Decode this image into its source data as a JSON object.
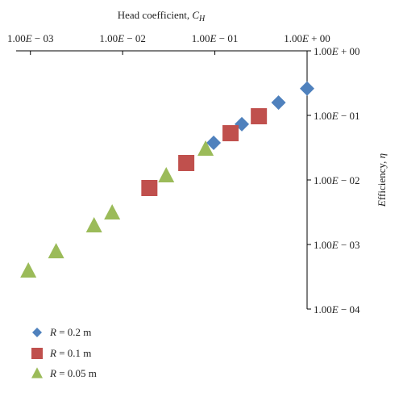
{
  "chart_data": {
    "type": "scatter",
    "x_label": "Head coefficient, C_H",
    "y_label": "Efficiency, η",
    "xscale": "log",
    "yscale": "log",
    "xlim": [
      0.0007,
      1
    ],
    "ylim": [
      0.0001,
      1
    ],
    "xticks": [
      {
        "value": 0.001,
        "label": "1.00E − 03"
      },
      {
        "value": 0.01,
        "label": "1.00E − 02"
      },
      {
        "value": 0.1,
        "label": "1.00E − 01"
      },
      {
        "value": 1,
        "label": "1.00E + 00"
      }
    ],
    "yticks": [
      {
        "value": 1,
        "label": "1.00E + 00"
      },
      {
        "value": 0.1,
        "label": "1.00E − 01"
      },
      {
        "value": 0.01,
        "label": "1.00E − 02"
      },
      {
        "value": 0.001,
        "label": "1.00E − 03"
      },
      {
        "value": 0.0001,
        "label": "1.00E − 04"
      }
    ],
    "legend": "bottom-left",
    "series": [
      {
        "name": "R = 0.2 m",
        "color": "#4f81bd",
        "marker": "diamond",
        "x": [
          0.097,
          0.196,
          0.49,
          1.0
        ],
        "values": [
          0.0376,
          0.073,
          0.158,
          0.26
        ]
      },
      {
        "name": "R = 0.1 m",
        "color": "#c0504d",
        "marker": "square",
        "x": [
          0.0195,
          0.049,
          0.148,
          0.3
        ],
        "values": [
          0.0075,
          0.0183,
          0.053,
          0.097
        ]
      },
      {
        "name": "R = 0.05 m",
        "color": "#9bbb59",
        "marker": "triangle",
        "x": [
          0.00095,
          0.0019,
          0.0049,
          0.0077,
          0.0297,
          0.0794
        ],
        "values": [
          0.000387,
          0.00077,
          0.00194,
          0.00307,
          0.01155,
          0.0299
        ]
      }
    ]
  }
}
